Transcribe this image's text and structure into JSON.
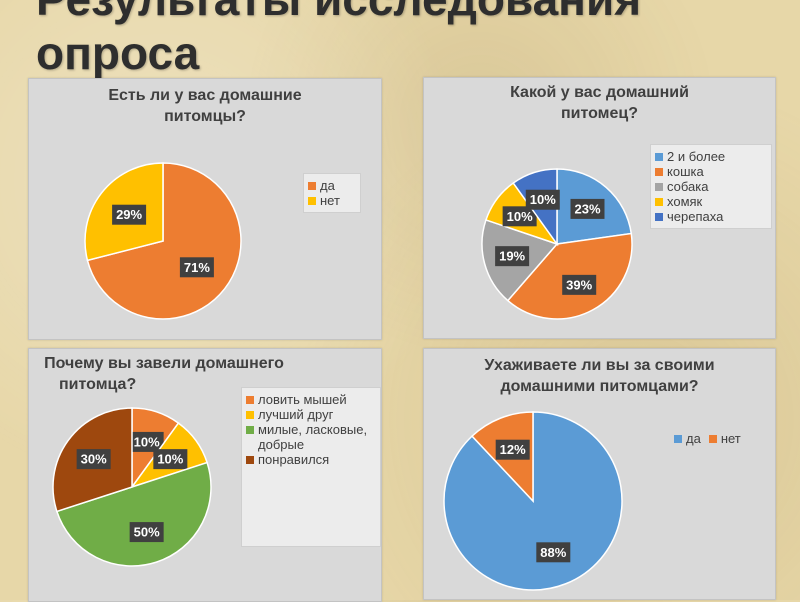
{
  "slide": {
    "title_lines": [
      "Результаты исследования",
      "опроса"
    ]
  },
  "chart_data": [
    {
      "type": "pie",
      "title_lines": [
        "Есть ли у вас домашние",
        "питомцы?"
      ],
      "categories": [
        "да",
        "нет"
      ],
      "values": [
        71,
        29
      ],
      "labels": [
        "71%",
        "29%"
      ],
      "colors": [
        "#ed7d31",
        "#ffc000"
      ],
      "legend_position": "right"
    },
    {
      "type": "pie",
      "title_lines": [
        "Какой у вас домашний",
        "питомец?"
      ],
      "categories": [
        "2 и более",
        "кошка",
        "собака",
        "хомяк",
        "черепаха"
      ],
      "values": [
        23,
        39,
        19,
        10,
        10
      ],
      "labels": [
        "23%",
        "39%",
        "19%",
        "10%",
        "10%"
      ],
      "colors": [
        "#5b9bd5",
        "#ed7d31",
        "#a5a5a5",
        "#ffc000",
        "#4472c4"
      ],
      "legend_position": "right"
    },
    {
      "type": "pie",
      "title_lines": [
        "Почему вы завели домашнего",
        "питомца?"
      ],
      "categories": [
        "ловить мышей",
        "лучший друг",
        "милые, ласковые, добрые",
        "понравился"
      ],
      "legend_lines": [
        [
          "ловить мышей"
        ],
        [
          "лучший друг"
        ],
        [
          "милые, ласковые,",
          "добрые"
        ],
        [
          "понравился"
        ]
      ],
      "values": [
        10,
        10,
        50,
        30
      ],
      "labels": [
        "10%",
        "10%",
        "50%",
        "30%"
      ],
      "colors": [
        "#ed7d31",
        "#ffc000",
        "#70ad47",
        "#9e480e"
      ],
      "legend_position": "right"
    },
    {
      "type": "pie",
      "title_lines": [
        "Ухаживаете ли вы за своими",
        "домашними питомцами?"
      ],
      "categories": [
        "да",
        "нет"
      ],
      "values": [
        88,
        12
      ],
      "labels": [
        "88%",
        "12%"
      ],
      "colors": [
        "#5b9bd5",
        "#ed7d31"
      ],
      "legend_position": "top-right"
    }
  ]
}
